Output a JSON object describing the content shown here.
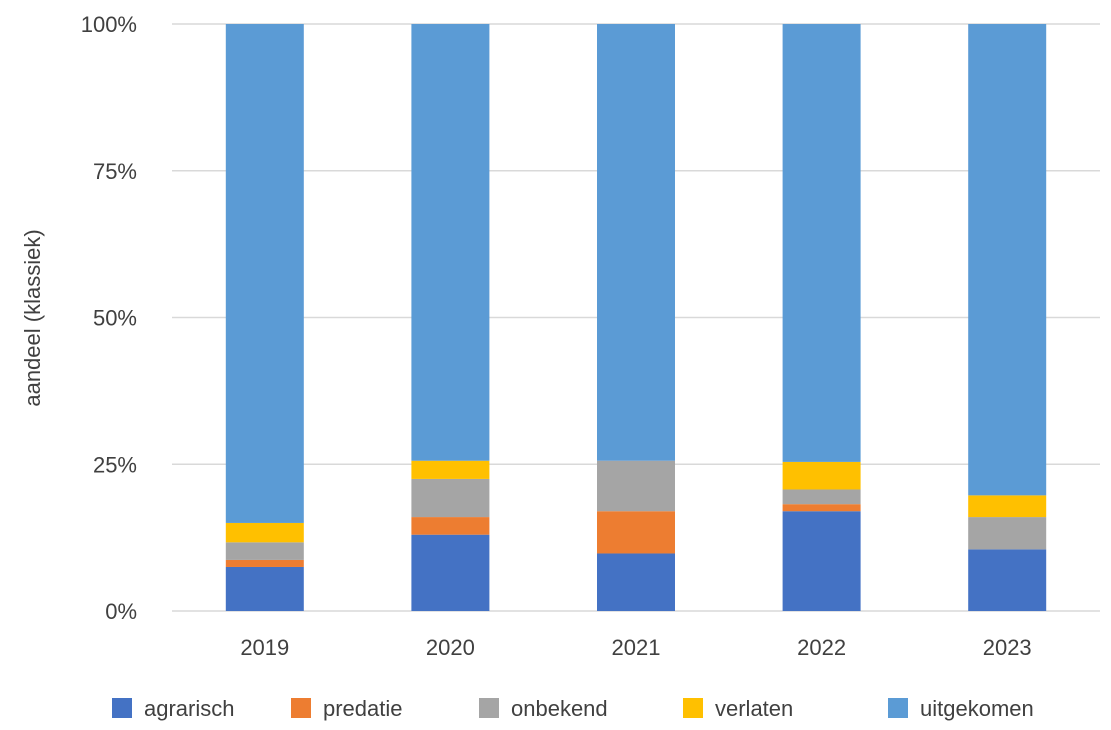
{
  "chart_data": {
    "type": "bar",
    "stacked": true,
    "percent": true,
    "title": "",
    "xlabel": "",
    "ylabel": "aandeel (klassiek)",
    "ylim": [
      0,
      100
    ],
    "yticks": [
      "0%",
      "25%",
      "50%",
      "75%",
      "100%"
    ],
    "ytick_values": [
      0,
      25,
      50,
      75,
      100
    ],
    "categories": [
      "2019",
      "2020",
      "2021",
      "2022",
      "2023"
    ],
    "series": [
      {
        "name": "agrarisch",
        "color": "#4472C4",
        "values": [
          7.5,
          13.0,
          9.8,
          17.0,
          10.5
        ]
      },
      {
        "name": "predatie",
        "color": "#ED7D31",
        "values": [
          1.2,
          3.0,
          7.2,
          1.2,
          0.0
        ]
      },
      {
        "name": "onbekend",
        "color": "#A5A5A5",
        "values": [
          3.0,
          6.5,
          8.6,
          2.5,
          5.5
        ]
      },
      {
        "name": "verlaten",
        "color": "#FFC000",
        "values": [
          3.3,
          3.1,
          0.0,
          4.7,
          3.7
        ]
      },
      {
        "name": "uitgekomen",
        "color": "#5B9BD5",
        "values": [
          85.0,
          74.4,
          74.4,
          74.6,
          80.3
        ]
      }
    ],
    "grid": true,
    "legend_position": "bottom"
  }
}
